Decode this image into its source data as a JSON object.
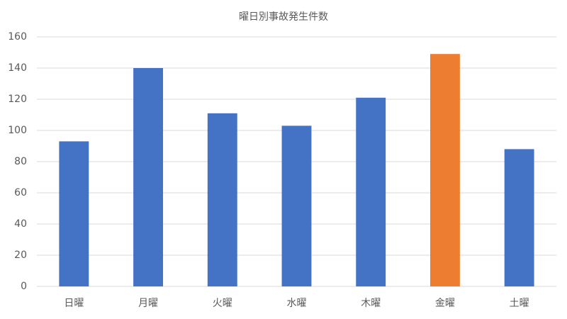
{
  "chart_data": {
    "type": "bar",
    "title": "曜日別事故発生件数",
    "categories": [
      "日曜",
      "月曜",
      "火曜",
      "水曜",
      "木曜",
      "金曜",
      "土曜"
    ],
    "values": [
      93,
      140,
      111,
      103,
      121,
      149,
      88
    ],
    "colors": [
      "#4472c4",
      "#4472c4",
      "#4472c4",
      "#4472c4",
      "#4472c4",
      "#ed7d31",
      "#4472c4"
    ],
    "ylim": [
      0,
      160
    ],
    "yticks": [
      0,
      20,
      40,
      60,
      80,
      100,
      120,
      140,
      160
    ],
    "grid": true
  }
}
